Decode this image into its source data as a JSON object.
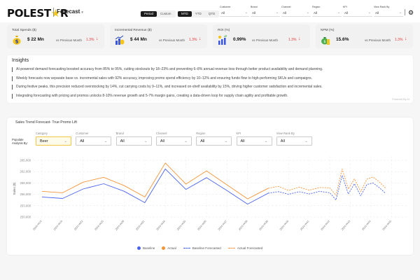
{
  "header": {
    "brand": "POLESTAR",
    "app_title": "Forecast",
    "period_toggle": [
      {
        "label": "Period",
        "active": true
      },
      {
        "label": "Custom",
        "active": false
      }
    ],
    "range_toggle": [
      {
        "label": "MTD",
        "active": true
      },
      {
        "label": "YTD",
        "active": false
      },
      {
        "label": "QTD",
        "active": false
      }
    ],
    "filters": [
      {
        "label": "Customer",
        "value": "All"
      },
      {
        "label": "Brand",
        "value": "All"
      },
      {
        "label": "Channel",
        "value": "All"
      },
      {
        "label": "Region",
        "value": "All"
      },
      {
        "label": "KPI",
        "value": "All"
      },
      {
        "label": "View Rank By",
        "value": "All"
      }
    ]
  },
  "kpis": [
    {
      "title": "Total Spends ($)",
      "value": "$ 22 Mn",
      "compare": "vs Previous Month",
      "change": "1.3%",
      "icon": "money-bag-icon"
    },
    {
      "title": "Incremental Revenue ($)",
      "value": "$ 44 Mn",
      "compare": "vs Previous Month",
      "change": "1.3%",
      "icon": "revenue-growth-icon"
    },
    {
      "title": "ROI (%)",
      "value": "0.99%",
      "compare": "vs Previous Month",
      "change": "1.3%",
      "icon": "roi-chart-icon"
    },
    {
      "title": "NPM (%)",
      "value": "15.6%",
      "compare": "vs Previous Month",
      "change": "1.3%",
      "icon": "profit-bag-icon"
    }
  ],
  "insights": {
    "title": "Insights",
    "lines": [
      "AI-powered demand forecasting boosted accuracy from 85% to 95%, cutting stockouts by 18–23% and preventing 6–8% annual revenue loss through better product availability and demand planning.",
      "Weekly forecasts now separate base vs. incremental sales with 92% accuracy, improving promo spend efficiency by 10–12% and ensuring funds flow to high-performing SKUs and campaigns.",
      "During festive peaks, this precision reduced overstocking by 14%, cut carrying costs by 9–11%, and increased on-shelf availability by 15%, driving higher customer satisfaction and incremental sales.",
      "Integrating forecasting with pricing and promos unlocks 8-10% revenue growth and 5-7% margin gains, creating a data-driven loop for supply chain agility and profitable growth."
    ],
    "powered_by": "Powered By AI"
  },
  "chart_section": {
    "title": "Sales Trend Forecast- True Promo Lift",
    "populate_label": "Populate Analysis By:",
    "filters": [
      {
        "label": "Category",
        "value": "Beer",
        "highlight": true
      },
      {
        "label": "Customer",
        "value": "All"
      },
      {
        "label": "Brand",
        "value": "All"
      },
      {
        "label": "Channel",
        "value": "All"
      },
      {
        "label": "Region",
        "value": "All"
      },
      {
        "label": "KPI",
        "value": "All"
      },
      {
        "label": "View Rank By",
        "value": "All"
      }
    ],
    "legend": [
      "Baseline",
      "Actual",
      "Baseline Forecasted",
      "Actual Forecasted"
    ]
  },
  "colors": {
    "baseline": "#4a62f0",
    "actual": "#f5943a",
    "negative": "#e23a3a",
    "highlight": "#f1c644"
  },
  "chart_data": {
    "type": "line",
    "title": "Sales Trend Forecast- True Promo Lift",
    "xlabel": "",
    "ylabel": "Sales ($)",
    "ylim": [
      250000,
      265000
    ],
    "yticks": [
      250000,
      253000,
      256000,
      259000,
      262000,
      265000
    ],
    "ytick_labels": [
      "250,000",
      "253,000",
      "256,000",
      "259,000",
      "262,000",
      "265,000"
    ],
    "grid": true,
    "legend_position": "bottom",
    "categories": [
      "2024-W16",
      "2024-W19",
      "2024-W22",
      "2024-W25",
      "2024-W28",
      "2024-W31",
      "2024-W34",
      "2024-W35",
      "2024-W36",
      "2024-W37",
      "2024-W38",
      "2024-W39",
      "2024-W40",
      "2024-W41",
      "2024-W42",
      "2024-W43",
      "2024-W44",
      "2024-W45"
    ],
    "series": [
      {
        "name": "Baseline",
        "style": "solid",
        "x": [
          0,
          1,
          2,
          3,
          4,
          5,
          6,
          7,
          8,
          9,
          10,
          11
        ],
        "values": [
          255300,
          254900,
          257400,
          258800,
          256800,
          253800,
          262700,
          257300,
          260400,
          257000,
          253400,
          256300
        ]
      },
      {
        "name": "Actual",
        "style": "solid",
        "x": [
          0,
          1,
          2,
          3,
          4,
          5,
          6,
          7,
          8,
          9,
          10,
          11
        ],
        "values": [
          256800,
          256400,
          259200,
          260500,
          258300,
          255300,
          264300,
          258700,
          262200,
          258500,
          254800,
          257600
        ]
      },
      {
        "name": "Baseline Forecasted",
        "style": "dashed",
        "x": [
          11,
          11.5,
          12,
          12.5,
          13,
          13.5,
          14,
          14.3,
          14.6,
          14.9,
          15.2,
          15.5,
          15.8,
          16.1,
          16.4,
          16.7
        ],
        "values": [
          256300,
          256700,
          256000,
          256700,
          256100,
          256800,
          256400,
          254500,
          261000,
          256100,
          258800,
          255600,
          258600,
          259000,
          257800,
          256300
        ]
      },
      {
        "name": "Actual Forecasted",
        "style": "dashed",
        "x": [
          11,
          11.5,
          12,
          12.5,
          13,
          13.5,
          14,
          14.3,
          14.6,
          14.9,
          15.2,
          15.5,
          15.8,
          16.1,
          16.4,
          16.7
        ],
        "values": [
          257600,
          258100,
          257000,
          257900,
          257100,
          257800,
          257700,
          255700,
          262700,
          257400,
          260100,
          256700,
          260000,
          260600,
          259300,
          257700
        ]
      }
    ]
  }
}
